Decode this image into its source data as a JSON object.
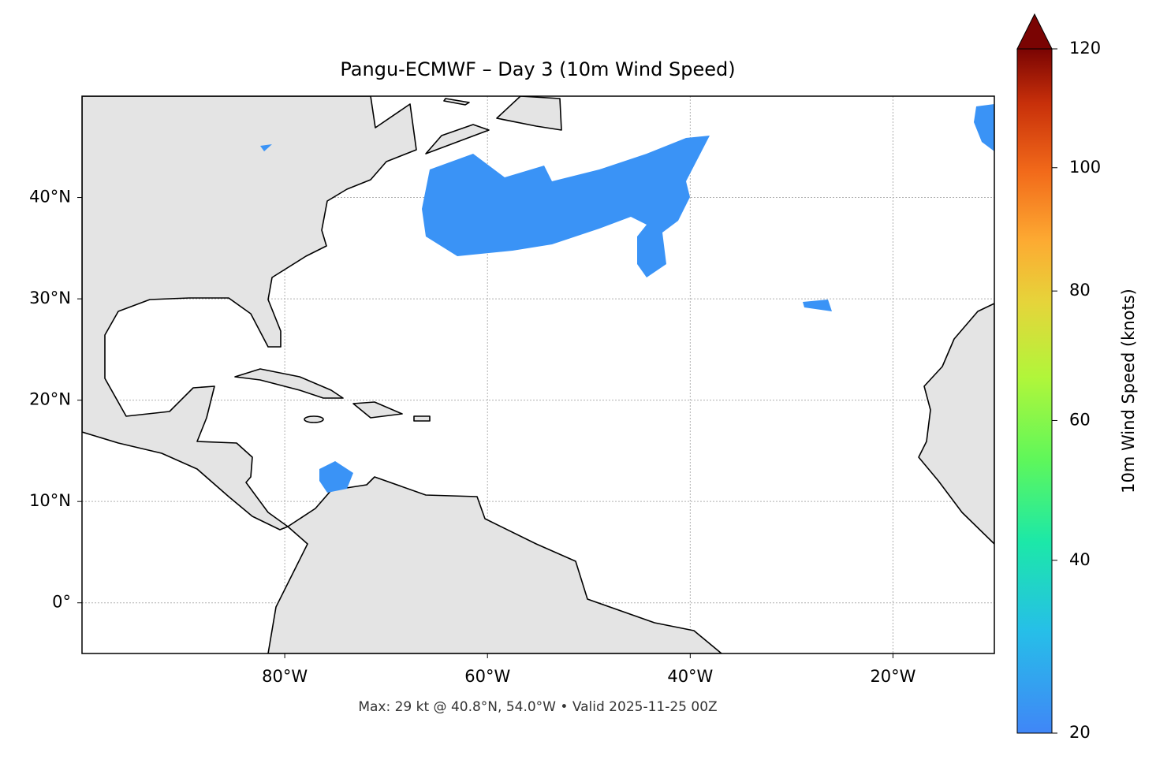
{
  "chart_data": {
    "type": "map",
    "title": "Pangu-ECMWF – Day 3 (10m Wind Speed)",
    "annotation": "Max: 29 kt @ 40.8°N, 54.0°W • Valid 2025-11-25 00Z",
    "xlim": [
      -100,
      -10
    ],
    "ylim": [
      -5,
      50
    ],
    "xticks": [
      {
        "value": -80,
        "label": "80°W"
      },
      {
        "value": -60,
        "label": "60°W"
      },
      {
        "value": -40,
        "label": "40°W"
      },
      {
        "value": -20,
        "label": "20°W"
      }
    ],
    "yticks": [
      {
        "value": 0,
        "label": "0°"
      },
      {
        "value": 10,
        "label": "10°N"
      },
      {
        "value": 20,
        "label": "20°N"
      },
      {
        "value": 30,
        "label": "30°N"
      },
      {
        "value": 40,
        "label": "40°N"
      }
    ],
    "grid": true,
    "colorbar": {
      "label": "10m Wind Speed (knots)",
      "lim": [
        20,
        120
      ],
      "ticks": [
        20,
        40,
        60,
        80,
        100,
        120
      ],
      "norm": "power",
      "extend": "max"
    }
  }
}
